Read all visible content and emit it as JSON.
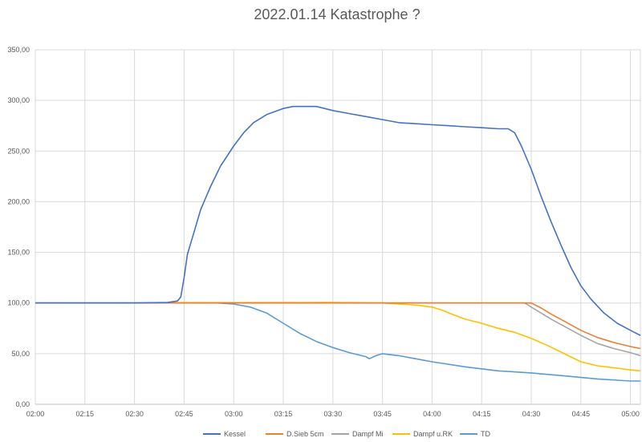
{
  "chart_data": {
    "type": "line",
    "title": "2022.01.14 Katastrophe ?",
    "xlabel": "",
    "ylabel": "",
    "x_unit": "time (hh:mm)",
    "xlim": [
      "02:00",
      "05:03"
    ],
    "ylim": [
      0,
      350
    ],
    "x_ticks": [
      "02:00",
      "02:15",
      "02:30",
      "02:45",
      "03:00",
      "03:15",
      "03:30",
      "03:45",
      "04:00",
      "04:15",
      "04:30",
      "04:45",
      "05:00"
    ],
    "y_ticks": [
      "0,00",
      "50,00",
      "100,00",
      "150,00",
      "200,00",
      "250,00",
      "300,00",
      "350,00"
    ],
    "grid": {
      "horizontal": true,
      "vertical": true
    },
    "legend_position": "bottom",
    "series": [
      {
        "name": "Kessel",
        "color": "#4472c4",
        "points": [
          [
            "02:00",
            100
          ],
          [
            "02:30",
            100
          ],
          [
            "02:40",
            100.5
          ],
          [
            "02:43",
            102
          ],
          [
            "02:44",
            106
          ],
          [
            "02:45",
            125
          ],
          [
            "02:46",
            148
          ],
          [
            "02:48",
            170
          ],
          [
            "02:50",
            192
          ],
          [
            "02:53",
            215
          ],
          [
            "02:56",
            235
          ],
          [
            "03:00",
            255
          ],
          [
            "03:03",
            268
          ],
          [
            "03:06",
            278
          ],
          [
            "03:10",
            286
          ],
          [
            "03:15",
            292
          ],
          [
            "03:18",
            294
          ],
          [
            "03:25",
            294
          ],
          [
            "03:30",
            290
          ],
          [
            "03:35",
            287
          ],
          [
            "03:40",
            284
          ],
          [
            "03:45",
            281
          ],
          [
            "03:50",
            278
          ],
          [
            "03:55",
            277
          ],
          [
            "04:00",
            276
          ],
          [
            "04:05",
            275
          ],
          [
            "04:10",
            274
          ],
          [
            "04:15",
            273
          ],
          [
            "04:20",
            272
          ],
          [
            "04:23",
            272
          ],
          [
            "04:25",
            268
          ],
          [
            "04:27",
            255
          ],
          [
            "04:30",
            232
          ],
          [
            "04:33",
            205
          ],
          [
            "04:36",
            180
          ],
          [
            "04:39",
            157
          ],
          [
            "04:42",
            135
          ],
          [
            "04:45",
            117
          ],
          [
            "04:48",
            104
          ],
          [
            "04:52",
            90
          ],
          [
            "04:56",
            80
          ],
          [
            "05:00",
            73
          ],
          [
            "05:03",
            68
          ]
        ]
      },
      {
        "name": "D.Sieb 5cm",
        "color": "#ed7d31",
        "points": [
          [
            "02:00",
            100
          ],
          [
            "04:30",
            100
          ],
          [
            "04:33",
            95
          ],
          [
            "04:36",
            89
          ],
          [
            "04:40",
            82
          ],
          [
            "04:45",
            73
          ],
          [
            "04:50",
            66
          ],
          [
            "04:55",
            61
          ],
          [
            "05:00",
            57
          ],
          [
            "05:03",
            55
          ]
        ]
      },
      {
        "name": "Dampf Mi",
        "color": "#a5a5a5",
        "points": [
          [
            "02:00",
            100
          ],
          [
            "04:28",
            100
          ],
          [
            "04:30",
            96
          ],
          [
            "04:33",
            90
          ],
          [
            "04:36",
            84
          ],
          [
            "04:40",
            77
          ],
          [
            "04:45",
            68
          ],
          [
            "04:50",
            60
          ],
          [
            "04:55",
            55
          ],
          [
            "05:00",
            51
          ],
          [
            "05:03",
            48
          ]
        ]
      },
      {
        "name": "Dampf u.RK",
        "color": "#ffc000",
        "points": [
          [
            "02:00",
            100
          ],
          [
            "03:30",
            100.5
          ],
          [
            "03:45",
            100
          ],
          [
            "03:50",
            99
          ],
          [
            "03:55",
            98
          ],
          [
            "04:00",
            96
          ],
          [
            "04:03",
            93
          ],
          [
            "04:06",
            89
          ],
          [
            "04:10",
            84
          ],
          [
            "04:15",
            80
          ],
          [
            "04:20",
            75
          ],
          [
            "04:25",
            71
          ],
          [
            "04:30",
            65
          ],
          [
            "04:35",
            58
          ],
          [
            "04:40",
            50
          ],
          [
            "04:45",
            42
          ],
          [
            "04:50",
            38
          ],
          [
            "04:55",
            36
          ],
          [
            "05:00",
            34
          ],
          [
            "05:03",
            33
          ]
        ]
      },
      {
        "name": "TD",
        "color": "#5b9bd5",
        "points": [
          [
            "02:00",
            100
          ],
          [
            "02:45",
            100
          ],
          [
            "02:55",
            100
          ],
          [
            "03:00",
            99
          ],
          [
            "03:05",
            96
          ],
          [
            "03:10",
            90
          ],
          [
            "03:15",
            80
          ],
          [
            "03:20",
            70
          ],
          [
            "03:25",
            62
          ],
          [
            "03:30",
            56
          ],
          [
            "03:35",
            51
          ],
          [
            "03:40",
            47
          ],
          [
            "03:41",
            45
          ],
          [
            "03:43",
            48
          ],
          [
            "03:45",
            50
          ],
          [
            "03:50",
            48
          ],
          [
            "03:55",
            45
          ],
          [
            "04:00",
            42
          ],
          [
            "04:10",
            37
          ],
          [
            "04:20",
            33
          ],
          [
            "04:30",
            31
          ],
          [
            "04:40",
            28
          ],
          [
            "04:50",
            25
          ],
          [
            "05:00",
            23
          ],
          [
            "05:03",
            23
          ]
        ]
      }
    ]
  }
}
